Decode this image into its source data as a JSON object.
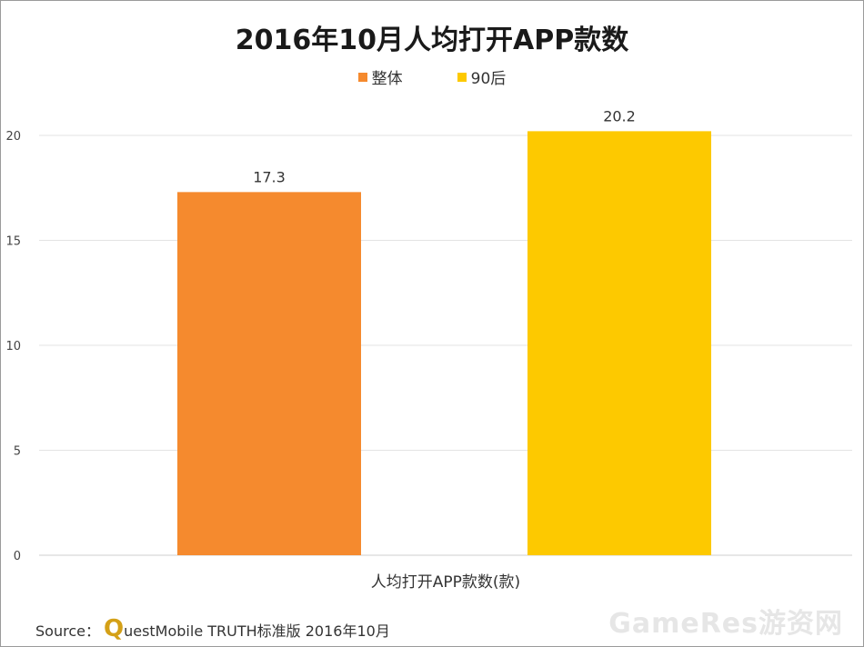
{
  "chart_data": {
    "type": "bar",
    "title": "2016年10月人均打开APP款数",
    "xlabel": "人均打开APP款数(款)",
    "ylabel": "",
    "ylim": [
      0,
      20
    ],
    "yticks": [
      0,
      5,
      10,
      15,
      20
    ],
    "grid": true,
    "legend_position": "top-center",
    "series": [
      {
        "name": "整体",
        "values": [
          17.3
        ],
        "color": "#f58a2e"
      },
      {
        "name": "90后",
        "values": [
          20.2
        ],
        "color": "#fdc900"
      }
    ]
  },
  "footer": {
    "source_prefix": "Source：",
    "logo_letter": "Q",
    "source_text": "uestMobile TRUTH标准版 2016年10月",
    "watermark": "GameRes游资网"
  }
}
